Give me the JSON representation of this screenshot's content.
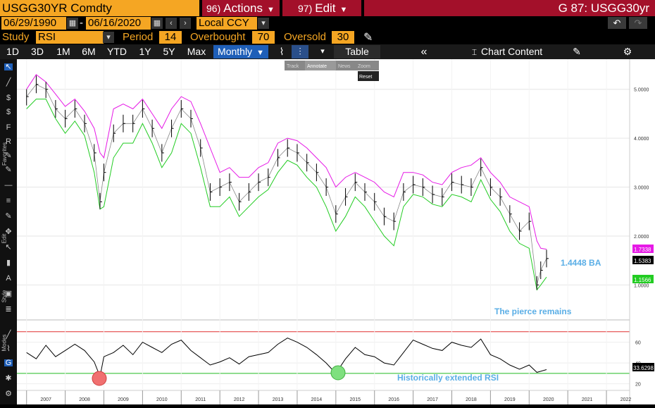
{
  "header": {
    "ticker": "USGG30YR Comdty",
    "actions_num": "96)",
    "actions_label": "Actions",
    "edit_num": "97)",
    "edit_label": "Edit",
    "window_title": "G 87: USGG30yr"
  },
  "dates": {
    "start": "06/29/1990",
    "sep": "-",
    "end": "06/16/2020",
    "currency": "Local CCY"
  },
  "study": {
    "label": "Study",
    "value": "RSI",
    "period_label": "Period",
    "period": "14",
    "overbought_label": "Overbought",
    "overbought": "70",
    "oversold_label": "Oversold",
    "oversold": "30"
  },
  "toolbar": {
    "ranges": [
      "1D",
      "3D",
      "1M",
      "6M",
      "YTD",
      "1Y",
      "5Y",
      "Max"
    ],
    "frequency": "Monthly",
    "table_label": "Table",
    "chart_content_label": "Chart Content"
  },
  "popup": {
    "items": [
      "Track",
      "Annotate",
      "News",
      "Zoom"
    ],
    "reset": "Reset"
  },
  "side_labels": {
    "favorites": "Favorites",
    "edit": "Edit",
    "style": "Style",
    "modes": "Modes"
  },
  "colors": {
    "upper_band": "#e619e6",
    "lower_band": "#22cc22",
    "price": "#000000",
    "rsi": "#000000",
    "overbought_line": "#e03030",
    "oversold_line": "#22bb22",
    "annotation": "#5aaee6",
    "ticker_bg": "#f5a623",
    "menu_bg": "#a3102a"
  },
  "chart_data": [
    {
      "type": "line",
      "title": "",
      "x_ticks": [
        "2007",
        "2008",
        "2009",
        "2010",
        "2011",
        "2012",
        "2013",
        "2014",
        "2015",
        "2016",
        "2017",
        "2018",
        "2019",
        "2020",
        "2021",
        "2022"
      ],
      "x": [
        2007.0,
        2007.25,
        2007.5,
        2007.75,
        2008.0,
        2008.25,
        2008.5,
        2008.75,
        2008.9,
        2009.0,
        2009.25,
        2009.5,
        2009.75,
        2010.0,
        2010.25,
        2010.5,
        2010.75,
        2011.0,
        2011.25,
        2011.5,
        2011.75,
        2012.0,
        2012.25,
        2012.5,
        2012.75,
        2013.0,
        2013.25,
        2013.5,
        2013.75,
        2014.0,
        2014.25,
        2014.5,
        2014.75,
        2015.0,
        2015.25,
        2015.5,
        2015.75,
        2016.0,
        2016.25,
        2016.5,
        2016.75,
        2017.0,
        2017.25,
        2017.5,
        2017.75,
        2018.0,
        2018.25,
        2018.5,
        2018.75,
        2019.0,
        2019.25,
        2019.5,
        2019.75,
        2020.0,
        2020.2,
        2020.3,
        2020.45
      ],
      "series": [
        {
          "name": "USGG30YR",
          "values": [
            4.85,
            5.1,
            5.0,
            4.6,
            4.4,
            4.6,
            4.3,
            3.7,
            2.7,
            3.3,
            4.1,
            4.3,
            4.3,
            4.6,
            4.2,
            3.7,
            4.2,
            4.6,
            4.4,
            3.8,
            2.9,
            3.0,
            3.1,
            2.7,
            2.9,
            3.1,
            3.2,
            3.6,
            3.8,
            3.7,
            3.5,
            3.3,
            3.0,
            2.45,
            2.8,
            3.1,
            2.9,
            2.7,
            2.4,
            2.3,
            2.9,
            3.05,
            3.0,
            2.85,
            2.8,
            3.1,
            3.05,
            3.0,
            3.4,
            3.0,
            2.8,
            2.45,
            2.1,
            2.3,
            1.0,
            1.3,
            1.54
          ]
        },
        {
          "name": "Upper band",
          "values": [
            5.0,
            5.3,
            5.15,
            4.9,
            4.65,
            4.8,
            4.55,
            4.2,
            3.7,
            3.6,
            4.6,
            4.7,
            4.6,
            4.8,
            4.5,
            4.2,
            4.6,
            4.85,
            4.75,
            4.3,
            3.8,
            3.3,
            3.4,
            3.2,
            3.2,
            3.4,
            3.5,
            3.9,
            4.0,
            3.95,
            3.8,
            3.6,
            3.4,
            3.0,
            3.2,
            3.3,
            3.2,
            3.1,
            2.9,
            2.8,
            3.3,
            3.3,
            3.25,
            3.1,
            3.05,
            3.3,
            3.4,
            3.45,
            3.6,
            3.3,
            3.1,
            2.8,
            2.7,
            2.6,
            1.9,
            1.75,
            1.73
          ]
        },
        {
          "name": "Lower band",
          "values": [
            4.6,
            4.8,
            4.8,
            4.4,
            4.1,
            4.35,
            4.05,
            3.3,
            2.55,
            2.6,
            3.6,
            3.9,
            3.9,
            4.3,
            3.9,
            3.4,
            3.7,
            4.3,
            4.1,
            3.4,
            2.6,
            2.6,
            2.8,
            2.4,
            2.6,
            2.8,
            2.95,
            3.3,
            3.55,
            3.45,
            3.2,
            3.0,
            2.6,
            2.1,
            2.4,
            2.8,
            2.6,
            2.3,
            2.0,
            1.8,
            2.6,
            2.85,
            2.8,
            2.65,
            2.6,
            2.85,
            2.8,
            2.7,
            3.15,
            2.75,
            2.5,
            2.1,
            1.85,
            1.75,
            0.9,
            1.0,
            1.16
          ]
        }
      ],
      "ylim": [
        0.4,
        5.5
      ],
      "y_ticks": [
        "5.0000",
        "4.0000",
        "3.0000",
        "2.0000",
        "1.0000"
      ],
      "last_values": {
        "upper": "1.7338",
        "price": "1.5383",
        "lower": "1.1566"
      },
      "annotations": {
        "price": "1.4448 BA",
        "note": "The pierce remains"
      }
    },
    {
      "type": "line",
      "title": "",
      "x": [
        2007.0,
        2007.25,
        2007.5,
        2007.75,
        2008.0,
        2008.25,
        2008.5,
        2008.75,
        2008.9,
        2009.0,
        2009.25,
        2009.5,
        2009.75,
        2010.0,
        2010.25,
        2010.5,
        2010.75,
        2011.0,
        2011.25,
        2011.5,
        2011.75,
        2012.0,
        2012.25,
        2012.5,
        2012.75,
        2013.0,
        2013.25,
        2013.5,
        2013.75,
        2014.0,
        2014.25,
        2014.5,
        2014.75,
        2015.0,
        2015.25,
        2015.5,
        2015.75,
        2016.0,
        2016.25,
        2016.5,
        2016.75,
        2017.0,
        2017.25,
        2017.5,
        2017.75,
        2018.0,
        2018.25,
        2018.5,
        2018.75,
        2019.0,
        2019.25,
        2019.5,
        2019.75,
        2020.0,
        2020.2,
        2020.3,
        2020.45
      ],
      "series": [
        {
          "name": "RSI",
          "values": [
            50,
            44,
            57,
            46,
            52,
            58,
            52,
            41,
            27,
            46,
            50,
            57,
            48,
            60,
            55,
            50,
            58,
            62,
            52,
            45,
            38,
            41,
            45,
            39,
            46,
            48,
            50,
            58,
            64,
            60,
            55,
            48,
            40,
            30,
            44,
            55,
            48,
            46,
            40,
            38,
            50,
            62,
            58,
            54,
            52,
            60,
            57,
            55,
            63,
            48,
            44,
            38,
            34,
            38,
            31,
            32,
            33.6
          ]
        }
      ],
      "ylim": [
        15,
        78
      ],
      "y_ticks": [
        "60",
        "40",
        "20"
      ],
      "reference_lines": {
        "overbought": 70,
        "oversold": 30
      },
      "last_value": "33.6298",
      "annotations": {
        "note": "Historically extended RSI"
      }
    }
  ]
}
